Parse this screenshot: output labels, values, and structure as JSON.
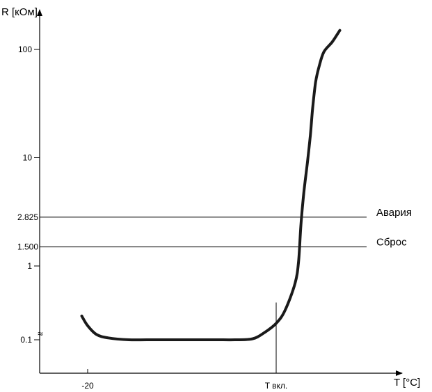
{
  "chart_data": {
    "type": "line",
    "title": "",
    "xlabel": "T [°C]",
    "ylabel": "R [кОм]",
    "yscale": "log",
    "y_ticks": [
      {
        "label": "0.1",
        "value": 0.1
      },
      {
        "label": "1",
        "value": 1
      },
      {
        "label": "10",
        "value": 10
      },
      {
        "label": "100",
        "value": 100
      }
    ],
    "x_ticks": [
      {
        "label": "-20",
        "value": -20
      },
      {
        "label": "T вкл.",
        "value": 12
      }
    ],
    "axis_break_symbol": "≈",
    "grid": false,
    "reference_lines": [
      {
        "label": "Авария",
        "value_label": "2.825",
        "value": 2.825
      },
      {
        "label": "Сброс",
        "value_label": "1.500",
        "value": 1.5
      }
    ],
    "marker_line": {
      "x": 12,
      "y": 0.32
    },
    "series": [
      {
        "color": "#1a1a1a",
        "points": [
          {
            "x": -21,
            "y": 0.21
          },
          {
            "x": -20,
            "y": 0.155
          },
          {
            "x": -18.5,
            "y": 0.118
          },
          {
            "x": -16.5,
            "y": 0.106
          },
          {
            "x": -13,
            "y": 0.096
          },
          {
            "x": -10,
            "y": 0.089
          },
          {
            "x": -7,
            "y": 0.087
          },
          {
            "x": -4,
            "y": 0.087
          },
          {
            "x": -1,
            "y": 0.087
          },
          {
            "x": 2,
            "y": 0.087
          },
          {
            "x": 5,
            "y": 0.09
          },
          {
            "x": 8,
            "y": 0.103
          },
          {
            "x": 10,
            "y": 0.125
          },
          {
            "x": 12,
            "y": 0.167
          },
          {
            "x": 13.5,
            "y": 0.25
          },
          {
            "x": 15.2,
            "y": 0.58
          },
          {
            "x": 15.8,
            "y": 1.1
          },
          {
            "x": 16.2,
            "y": 2.4
          },
          {
            "x": 16.7,
            "y": 4.8
          },
          {
            "x": 17.3,
            "y": 9
          },
          {
            "x": 17.8,
            "y": 16
          },
          {
            "x": 18.2,
            "y": 29
          },
          {
            "x": 18.7,
            "y": 50
          },
          {
            "x": 19.3,
            "y": 70
          },
          {
            "x": 20.1,
            "y": 95
          },
          {
            "x": 21.5,
            "y": 117
          },
          {
            "x": 22.8,
            "y": 150
          }
        ]
      }
    ]
  }
}
